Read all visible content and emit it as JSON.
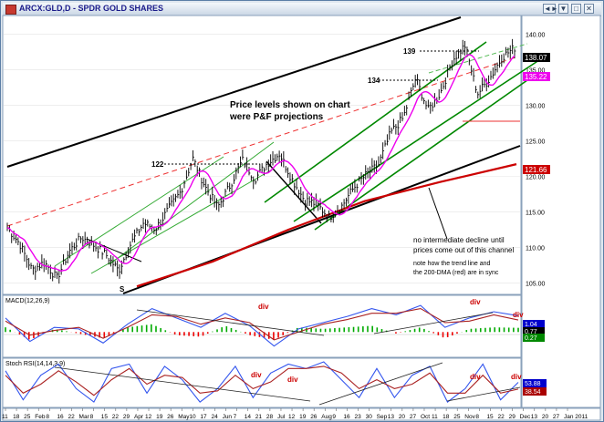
{
  "window": {
    "title": "ARCX:GLD,D - SPDR GOLD SHARES",
    "buttons": [
      "◄►",
      "▼",
      "□",
      "✕"
    ]
  },
  "chart_data": [
    {
      "type": "line",
      "name_printed": "",
      "ylim": [
        103.5,
        142.5
      ],
      "yticks": [
        105,
        110,
        115,
        120,
        125,
        130,
        135,
        140
      ],
      "ytick_labels": [
        "105.00",
        "110.00",
        "115.00",
        "120.00",
        "125.00",
        "130.00",
        "135.00",
        "140.00"
      ],
      "x_axis_labels": [
        "11",
        "18",
        "25",
        "Feb",
        "8",
        "16",
        "22",
        "Mar",
        "8",
        "15",
        "22",
        "29",
        "Apr",
        "12",
        "19",
        "26",
        "May",
        "10",
        "17",
        "24",
        "Jun",
        "7",
        "14",
        "21",
        "28",
        "Jul",
        "12",
        "19",
        "26",
        "Aug",
        "9",
        "16",
        "23",
        "30",
        "Sep",
        "13",
        "20",
        "27",
        "Oct",
        "11",
        "18",
        "25",
        "Nov",
        "8",
        "15",
        "22",
        "29",
        "Dec",
        "13",
        "20",
        "27",
        "Jan 2011"
      ],
      "price_path": [
        112.8,
        110.5,
        106.8,
        107.9,
        105.6,
        109.4,
        111.4,
        110.3,
        108.9,
        106.7,
        110.6,
        113.4,
        112.6,
        115.3,
        117.8,
        122.5,
        118.5,
        115.6,
        118.7,
        122.3,
        119.6,
        121.8,
        123.2,
        119.6,
        116.7,
        116.1,
        114.2,
        115.7,
        118.4,
        120.2,
        121.6,
        126.2,
        128.2,
        133.8,
        129.3,
        131.7,
        136.4,
        138.4,
        131.6,
        133.8,
        136.8,
        138.1
      ],
      "series": [
        {
          "name": "",
          "color": "#ee00ee",
          "values_role": "moving average (pink)"
        },
        {
          "name": "200-DMA",
          "color": "#cc0000",
          "values": [
            104.5,
            108.0,
            112.5,
            116.5,
            119.2,
            121.7
          ]
        }
      ],
      "price_readouts": [
        {
          "text": "138.07",
          "value": 138.07,
          "bg": "#000000",
          "fg": "#ffffff"
        },
        {
          "text": "135.22",
          "value": 135.22,
          "bg": "#ee00ee",
          "fg": "#ffffff"
        },
        {
          "text": "121.66",
          "value": 121.66,
          "bg": "#cc0000",
          "fg": "#ffffff"
        }
      ],
      "level_labels": [
        {
          "text": "139",
          "value": 139
        },
        {
          "text": "134",
          "value": 134
        },
        {
          "text": "122",
          "value": 122
        },
        {
          "text": "S",
          "value": 104.5
        }
      ],
      "annotations": [
        "Price levels shown on chart",
        "were P&F projections",
        "no intermediate decline until",
        "prices come out of this channel",
        "note how the trend line and",
        "the 200-DMA (red) are in sync"
      ],
      "colors": {
        "channel_black": "#000000",
        "channel_green": "#008800",
        "ma_pink": "#ee00ee",
        "dma_red": "#cc0000",
        "dashed_red": "#ee3333"
      }
    },
    {
      "type": "line",
      "label": "MACD(12,26,9)",
      "ylim": [
        -1.5,
        2.0
      ],
      "readouts": [
        {
          "text": "1.04",
          "bg": "#0000cc",
          "fg": "#ffffff"
        },
        {
          "text": "0.77",
          "bg": "#000000",
          "fg": "#ffffff"
        },
        {
          "text": "0.27",
          "bg": "#008800",
          "fg": "#ffffff"
        }
      ],
      "annotations": [
        "div",
        "div",
        "div"
      ],
      "series": [
        {
          "name": "MACD",
          "color": "#3355ee",
          "values": [
            0.9,
            -0.6,
            0.3,
            0.2,
            -0.7,
            0.5,
            1.5,
            0.9,
            0.3,
            1.2,
            0.4,
            -0.9,
            0.2,
            0.6,
            1.0,
            1.5,
            1.1,
            1.7,
            0.3,
            0.9,
            1.3,
            1.04
          ]
        },
        {
          "name": "Signal",
          "color": "#aa2222",
          "values": [
            0.7,
            -0.2,
            0.1,
            0.3,
            -0.4,
            0.3,
            1.1,
            1.0,
            0.5,
            0.9,
            0.6,
            -0.5,
            0.0,
            0.5,
            0.8,
            1.2,
            1.2,
            1.5,
            0.6,
            0.7,
            1.1,
            0.77
          ]
        },
        {
          "name": "Histogram",
          "color": "#00aa00",
          "negative_color": "#ee0000",
          "values": [
            0.3,
            -0.5,
            0.2,
            -0.1,
            -0.4,
            0.3,
            0.5,
            -0.2,
            -0.3,
            0.4,
            -0.2,
            -0.5,
            0.3,
            0.2,
            0.3,
            0.4,
            -0.1,
            0.3,
            -0.4,
            0.2,
            0.3,
            0.27
          ]
        }
      ]
    },
    {
      "type": "line",
      "label": "Stoch RSI(14,14,3,9)",
      "ylim": [
        0,
        100
      ],
      "readouts": [
        {
          "text": "53.88",
          "bg": "#0000cc",
          "fg": "#ffffff"
        },
        {
          "text": "38.54",
          "bg": "#aa0000",
          "fg": "#ffffff"
        }
      ],
      "annotations": [
        "div",
        "div",
        "div",
        "div"
      ],
      "series": [
        {
          "name": "%K",
          "color": "#3355ee",
          "values": [
            80,
            15,
            70,
            95,
            40,
            10,
            85,
            95,
            30,
            90,
            60,
            10,
            40,
            90,
            20,
            75,
            95,
            85,
            100,
            60,
            20,
            85,
            20,
            70,
            90,
            10,
            40,
            95,
            15,
            54
          ]
        },
        {
          "name": "%D",
          "color": "#aa2222",
          "values": [
            70,
            30,
            50,
            80,
            55,
            25,
            60,
            85,
            50,
            70,
            65,
            30,
            35,
            70,
            40,
            55,
            85,
            85,
            90,
            75,
            40,
            60,
            40,
            50,
            75,
            30,
            30,
            70,
            30,
            39
          ]
        }
      ]
    }
  ]
}
